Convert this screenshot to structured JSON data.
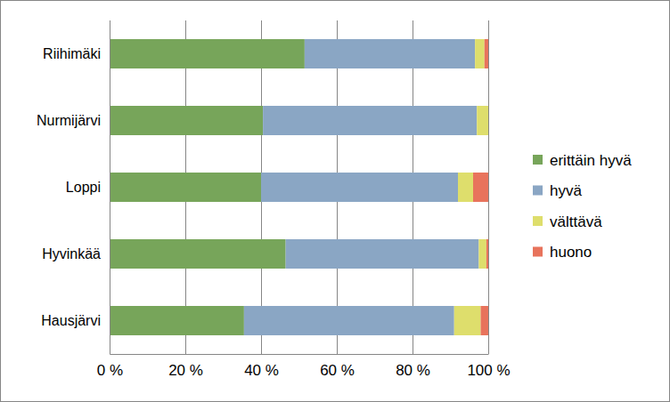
{
  "chart_data": {
    "type": "bar",
    "orientation": "horizontal",
    "stacked": true,
    "grid": true,
    "legend": "right",
    "categories": [
      "Riihimäki",
      "Nurmijärvi",
      "Loppi",
      "Hyvinkää",
      "Hausjärvi"
    ],
    "series": [
      {
        "name": "erittäin hyvä",
        "color": "#77a55a",
        "values": [
          51.5,
          40.5,
          40,
          46.5,
          35.5
        ]
      },
      {
        "name": "hyvä",
        "color": "#8aa6c4",
        "values": [
          45,
          56.5,
          52,
          51,
          55.5
        ]
      },
      {
        "name": "välttävä",
        "color": "#dede6c",
        "values": [
          2.5,
          3,
          4,
          2,
          7
        ]
      },
      {
        "name": "huono",
        "color": "#e8735c",
        "values": [
          1,
          0,
          4,
          0.5,
          2
        ]
      }
    ],
    "xlim": [
      0,
      100
    ],
    "xticks": [
      {
        "value": 0,
        "label": "0 %"
      },
      {
        "value": 20,
        "label": "20 %"
      },
      {
        "value": 40,
        "label": "40 %"
      },
      {
        "value": 60,
        "label": "60 %"
      },
      {
        "value": 80,
        "label": "80 %"
      },
      {
        "value": 100,
        "label": "100 %"
      }
    ]
  }
}
